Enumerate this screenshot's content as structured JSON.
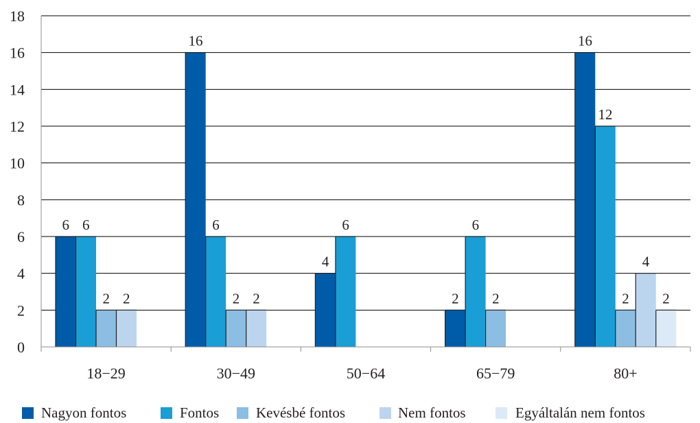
{
  "chart_data": {
    "type": "bar",
    "categories": [
      "18−29",
      "30−49",
      "50−64",
      "65−79",
      "80+"
    ],
    "series": [
      {
        "name": "Nagyon fontos",
        "color": "#005ca8",
        "values": [
          6,
          16,
          4,
          2,
          16
        ]
      },
      {
        "name": "Fontos",
        "color": "#1a9ed6",
        "values": [
          6,
          6,
          6,
          6,
          12
        ]
      },
      {
        "name": "Kevésbé fontos",
        "color": "#8cbde3",
        "values": [
          2,
          2,
          null,
          2,
          2
        ]
      },
      {
        "name": "Nem fontos",
        "color": "#bcd5ee",
        "values": [
          2,
          2,
          null,
          null,
          4
        ]
      },
      {
        "name": "Egyáltalán nem fontos",
        "color": "#dce9f7",
        "values": [
          null,
          null,
          null,
          null,
          2
        ]
      }
    ],
    "ylim": [
      0,
      18
    ],
    "yticks": [
      "0",
      "2",
      "4",
      "6",
      "8",
      "10",
      "12",
      "14",
      "16",
      "18"
    ],
    "grid": true,
    "legend_position": "bottom"
  }
}
